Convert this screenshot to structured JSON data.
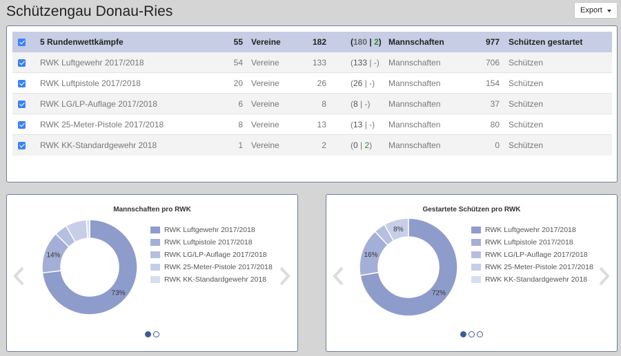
{
  "header": {
    "title": "Schützengau Donau-Ries",
    "export_label": "Export"
  },
  "summary": {
    "label": "5 Rundenwettkämpfe",
    "vereine_count": "55",
    "vereine_label": "Vereine",
    "teams_count": "182",
    "teams_open": "(",
    "teams_a": "180",
    "teams_sep": " | ",
    "teams_b": "2",
    "teams_close": ")",
    "mannschaften_label": "Mannschaften",
    "schuetzen_count": "977",
    "schuetzen_label": "Schützen gestartet"
  },
  "rows": [
    {
      "label": "RWK Luftgewehr 2017/2018",
      "vereine": "54",
      "vereine_label": "Vereine",
      "teams": "133",
      "detail_a": "133",
      "detail_b": "-",
      "mannschaften_label": "Mannschaften",
      "schuetzen": "706",
      "schuetzen_label": "Schützen"
    },
    {
      "label": "RWK Luftpistole 2017/2018",
      "vereine": "20",
      "vereine_label": "Vereine",
      "teams": "26",
      "detail_a": "26",
      "detail_b": "-",
      "mannschaften_label": "Mannschaften",
      "schuetzen": "154",
      "schuetzen_label": "Schützen"
    },
    {
      "label": "RWK LG/LP-Auflage 2017/2018",
      "vereine": "6",
      "vereine_label": "Vereine",
      "teams": "8",
      "detail_a": "8",
      "detail_b": "-",
      "mannschaften_label": "Mannschaften",
      "schuetzen": "37",
      "schuetzen_label": "Schützen"
    },
    {
      "label": "RWK 25-Meter-Pistole 2017/2018",
      "vereine": "8",
      "vereine_label": "Vereine",
      "teams": "13",
      "detail_a": "13",
      "detail_b": "-",
      "mannschaften_label": "Mannschaften",
      "schuetzen": "80",
      "schuetzen_label": "Schützen"
    },
    {
      "label": "RWK KK-Standardgewehr 2018",
      "vereine": "1",
      "vereine_label": "Vereine",
      "teams": "2",
      "detail_a": "0",
      "detail_b": "2",
      "mannschaften_label": "Mannschaften",
      "schuetzen": "0",
      "schuetzen_label": "Schützen"
    }
  ],
  "colors": {
    "slices": [
      "#8e9ccc",
      "#a3afd6",
      "#b6bfdf",
      "#c7cee8",
      "#d8ddef"
    ],
    "border": "#6b7ba8",
    "summary_bg": "#c6cde4",
    "dot": "#3d5a99",
    "green": "#2e8b2e"
  },
  "chart_data": [
    {
      "type": "pie",
      "title": "Mannschaften pro RWK",
      "categories": [
        "RWK Luftgewehr 2017/2018",
        "RWK Luftpistole 2017/2018",
        "RWK LG/LP-Auflage 2017/2018",
        "RWK 25-Meter-Pistole 2017/2018",
        "RWK KK-Standardgewehr 2018"
      ],
      "values": [
        133,
        26,
        8,
        13,
        2
      ],
      "slice_labels": [
        "73%",
        "14%",
        "",
        "",
        ""
      ],
      "pages": 2,
      "active_page": 0
    },
    {
      "type": "pie",
      "title": "Gestartete Schützen pro RWK",
      "categories": [
        "RWK Luftgewehr 2017/2018",
        "RWK Luftpistole 2017/2018",
        "RWK LG/LP-Auflage 2017/2018",
        "RWK 25-Meter-Pistole 2017/2018",
        "RWK KK-Standardgewehr 2018"
      ],
      "values": [
        706,
        154,
        37,
        80,
        0
      ],
      "slice_labels": [
        "72%",
        "16%",
        "",
        "8%",
        ""
      ],
      "pages": 3,
      "active_page": 0
    }
  ]
}
